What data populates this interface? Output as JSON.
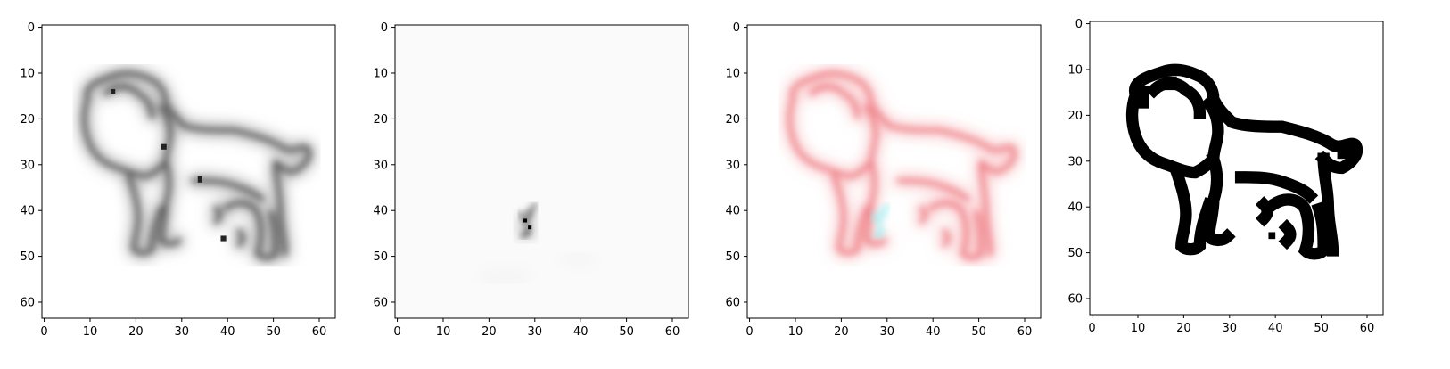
{
  "figure": {
    "panel_count": 4,
    "tick_values": [
      0,
      10,
      20,
      30,
      40,
      50,
      60
    ],
    "image_extent": [
      0,
      64
    ],
    "panels": [
      {
        "name": "panel-original",
        "style": "grayscale",
        "color": "#555555"
      },
      {
        "name": "panel-saliency",
        "style": "sparse-grayscale",
        "color": "#333333"
      },
      {
        "name": "panel-overlay",
        "style": "red-cyan-overlay",
        "color": "#f07a80",
        "accent": "#5ee8f0"
      },
      {
        "name": "panel-binarized",
        "style": "binary",
        "color": "#000000"
      }
    ]
  }
}
